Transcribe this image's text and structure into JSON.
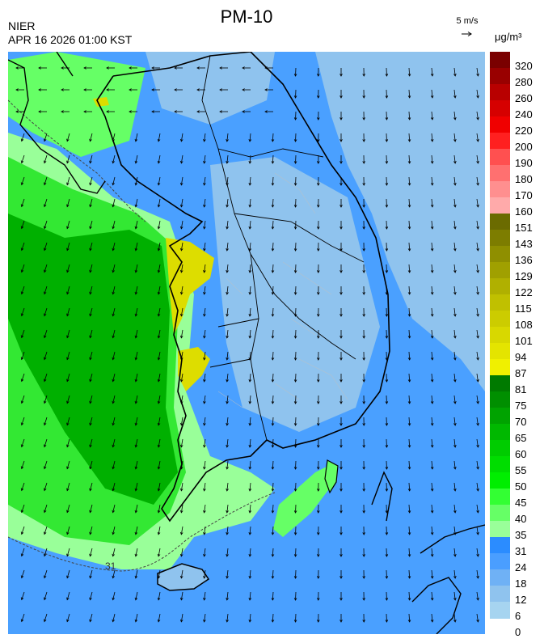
{
  "header": {
    "agency": "NIER",
    "timestamp": "APR 16 2026 01:00 KST",
    "title": "PM-10"
  },
  "wind_reference": {
    "label": "5 m/s",
    "icon": "arrow-right-icon"
  },
  "legend": {
    "unit": "μg/m³",
    "labels": [
      "320",
      "280",
      "260",
      "240",
      "220",
      "200",
      "190",
      "180",
      "170",
      "160",
      "151",
      "143",
      "136",
      "129",
      "122",
      "115",
      "108",
      "101",
      "94",
      "87",
      "81",
      "75",
      "70",
      "65",
      "60",
      "55",
      "50",
      "45",
      "40",
      "35",
      "31",
      "24",
      "18",
      "12",
      "6",
      "0"
    ],
    "colors": [
      "#7a0000",
      "#990000",
      "#b80000",
      "#d60000",
      "#f00000",
      "#ff2020",
      "#ff5050",
      "#ff7070",
      "#ff8f8f",
      "#ffaaaa",
      "#6b6b00",
      "#7d7d00",
      "#8f8f00",
      "#a0a000",
      "#b0b000",
      "#c0c000",
      "#cccc00",
      "#d8d800",
      "#e4e400",
      "#f0f000",
      "#007a00",
      "#008f00",
      "#00a300",
      "#00b800",
      "#00cc00",
      "#00dd00",
      "#00ee00",
      "#33ff33",
      "#66ff66",
      "#99ff99",
      "#2b8cff",
      "#4a9eff",
      "#6fb1f5",
      "#8fc3ee",
      "#a6d4f0"
    ]
  },
  "map": {
    "contour_label": "31",
    "colors": {
      "background": "#4aa0ff",
      "light_blue": "#8fc3ee",
      "green_dark": "#00b000",
      "green_mid": "#33e833",
      "green_light": "#99ff99",
      "yellow": "#dddd00",
      "land_line": "#000000"
    }
  }
}
